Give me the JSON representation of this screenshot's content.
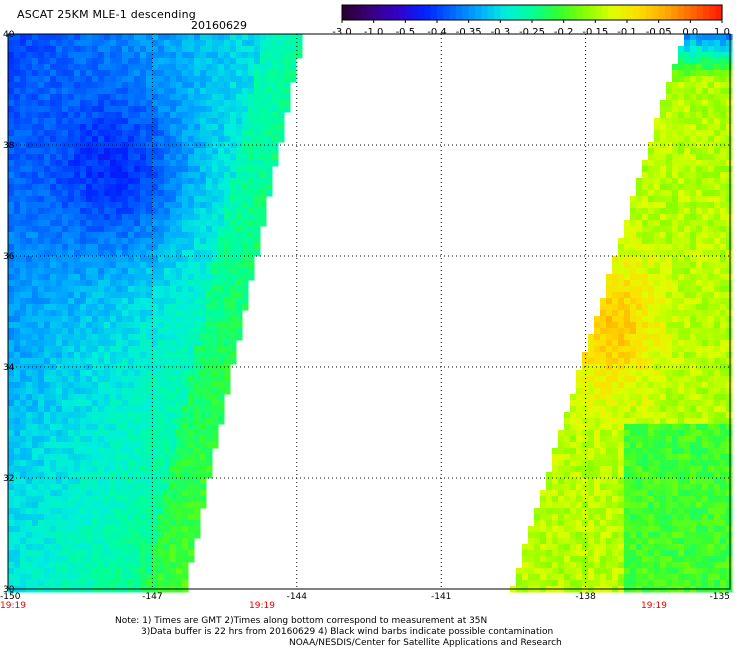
{
  "header": {
    "title": "ASCAT 25KM MLE-1 descending",
    "date": "20160629"
  },
  "colorbar": {
    "labels": [
      "-3.0",
      "-1.0",
      "-0.5",
      "-0.4",
      "-0.35",
      "-0.3",
      "-0.25",
      "-0.2",
      "-0.15",
      "-0.1",
      "-0.05",
      "0.0",
      "1.0"
    ],
    "colors": [
      "#2a0033",
      "#3a0080",
      "#3300cc",
      "#0022ff",
      "#0066ff",
      "#00aaff",
      "#00eedd",
      "#00ff99",
      "#33ff33",
      "#88ff00",
      "#ddff00",
      "#ffdd00",
      "#ffaa00",
      "#ff6600",
      "#ff2200"
    ]
  },
  "map": {
    "lon_range": [
      -150,
      -135
    ],
    "lat_range": [
      30,
      40
    ],
    "lon_ticks": [
      "-150",
      "-147",
      "-144",
      "-141",
      "-138",
      "-135"
    ],
    "lat_ticks": [
      "40",
      "38",
      "36",
      "34",
      "32",
      "30"
    ],
    "times": [
      "19:19",
      "19:19"
    ],
    "time_color": "#ee0000"
  },
  "notes": {
    "line1": "Note: 1) Times are GMT 2)Times along bottom correspond to measurement at 35N",
    "line2": "3)Data buffer is 22 hrs from 20160629 4) Black wind barbs indicate possible contamination",
    "line3": "NOAA/NESDIS/Center for Satellite Applications and Research"
  }
}
